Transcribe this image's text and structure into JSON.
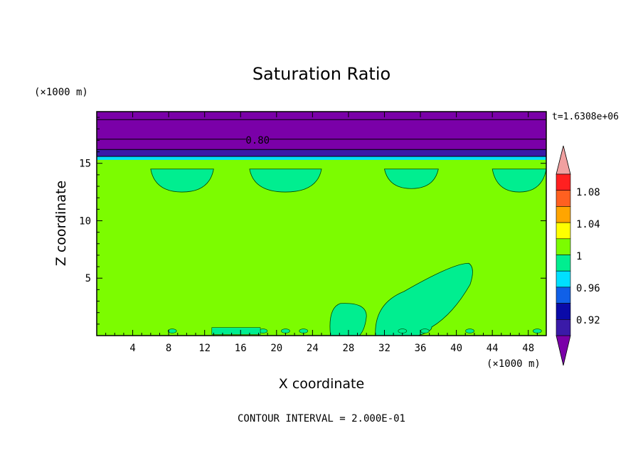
{
  "chart_data": {
    "type": "contour",
    "title": "Saturation Ratio",
    "xlabel": "X coordinate",
    "ylabel": "Z coordinate",
    "x_unit": "(×1000 m)",
    "y_unit": "(×1000 m)",
    "xlim": [
      0,
      50
    ],
    "ylim": [
      0,
      19.5
    ],
    "x_ticks": [
      4,
      8,
      12,
      16,
      20,
      24,
      28,
      32,
      36,
      40,
      44,
      48
    ],
    "y_ticks": [
      5,
      10,
      15
    ],
    "time_label": "t=1.6308e+06",
    "footer": "CONTOUR INTERVAL = 2.000E-01",
    "contour_label": "0.80",
    "colorbar": {
      "levels": [
        0.92,
        0.96,
        1,
        1.04,
        1.08
      ],
      "level_labels": [
        "0.92",
        "0.96",
        "1",
        "1.04",
        "1.08"
      ],
      "colors": [
        "#7a00a8",
        "#3a1aa8",
        "#0a0aa8",
        "#1060e8",
        "#00e0ff",
        "#00ee90",
        "#7cfc00",
        "#ffff00",
        "#ffa500",
        "#ff6020",
        "#ff2020",
        "#f0a0a0"
      ]
    },
    "field_colors": {
      "upper_layer": "#7a00a8",
      "transition": "#3a1aa8",
      "main": "#7cfc00",
      "blobs": "#00ee90",
      "thin_band": "#00e0ff"
    },
    "regions": [
      {
        "name": "upper-purple",
        "z_min": 16.2,
        "z_max": 19.5,
        "value": "< 0.92"
      },
      {
        "name": "dark-blue-band",
        "z_min": 15.6,
        "z_max": 16.2,
        "value": "0.92-0.96"
      },
      {
        "name": "main-green",
        "z_min": 0,
        "z_max": 15.3,
        "value": "1-1.04"
      }
    ],
    "blobs": [
      {
        "x": [
          6,
          13
        ],
        "z": [
          12.5,
          14.5
        ]
      },
      {
        "x": [
          17,
          25
        ],
        "z": [
          12.5,
          14.5
        ]
      },
      {
        "x": [
          32,
          38
        ],
        "z": [
          12.8,
          14.5
        ]
      },
      {
        "x": [
          44,
          50
        ],
        "z": [
          12.5,
          14.5
        ]
      },
      {
        "x": [
          26,
          30
        ],
        "z": [
          0,
          2.8
        ]
      },
      {
        "x": [
          31,
          42
        ],
        "z": [
          0,
          6.3
        ]
      }
    ]
  }
}
